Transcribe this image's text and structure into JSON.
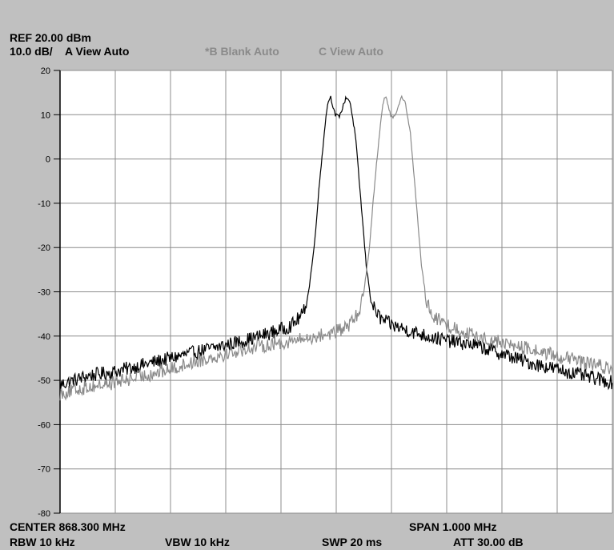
{
  "header": {
    "ref_level": "REF  20.00 dBm",
    "scale": "10.0 dB/",
    "trace_a": "A View Auto",
    "trace_b": "*B Blank Auto",
    "trace_c": "C View Auto"
  },
  "footer": {
    "center": "CENTER 868.300 MHz",
    "span": "SPAN 1.000 MHz",
    "rbw": "RBW  10 kHz",
    "vbw": "VBW  10 kHz",
    "swp": "SWP  20 ms",
    "att": "ATT  30.00 dB"
  },
  "colors": {
    "plot_background": "#ffffff",
    "grid": "#8c8c8c",
    "frame": "#c0c0c0",
    "trace_a": "#000000",
    "trace_c": "#8a8a8a"
  },
  "chart_data": {
    "type": "line",
    "title": "",
    "xlabel": "",
    "ylabel": "",
    "x_unit": "MHz",
    "y_unit": "dBm",
    "center_mhz": 868.3,
    "span_mhz": 1.0,
    "xlim": [
      867.8,
      868.8
    ],
    "ylim": [
      -80,
      20
    ],
    "ytick_labels": [
      "20",
      "10",
      "0",
      "-10",
      "-20",
      "-30",
      "-40",
      "-50",
      "-60",
      "-70",
      "-80"
    ],
    "grid": true,
    "x_divisions": 10,
    "y_divisions": 10,
    "series": [
      {
        "name": "A",
        "color": "#000000",
        "x": [
          867.8,
          867.85,
          867.9,
          867.95,
          868.0,
          868.05,
          868.1,
          868.15,
          868.2,
          868.22,
          868.24,
          868.25,
          868.26,
          868.27,
          868.28,
          868.285,
          868.29,
          868.298,
          868.305,
          868.31,
          868.318,
          868.325,
          868.335,
          868.345,
          868.355,
          868.365,
          868.38,
          868.4,
          868.45,
          868.5,
          868.55,
          868.6,
          868.65,
          868.7,
          868.75,
          868.8
        ],
        "y": [
          -51,
          -49,
          -48,
          -46.5,
          -45,
          -43.5,
          -42,
          -40.5,
          -38.5,
          -37.5,
          -35,
          -30,
          -20,
          -5,
          8,
          13,
          14,
          10,
          9.5,
          11,
          14,
          13,
          5,
          -10,
          -25,
          -33,
          -36,
          -37.5,
          -39.5,
          -41,
          -42,
          -44,
          -46,
          -47.5,
          -49,
          -50.5
        ]
      },
      {
        "name": "C",
        "color": "#8a8a8a",
        "x": [
          867.8,
          867.85,
          867.9,
          867.95,
          868.0,
          868.05,
          868.1,
          868.15,
          868.2,
          868.25,
          868.3,
          868.32,
          868.34,
          868.35,
          868.36,
          868.37,
          868.38,
          868.385,
          868.39,
          868.398,
          868.405,
          868.41,
          868.418,
          868.425,
          868.435,
          868.445,
          868.455,
          868.465,
          868.48,
          868.5,
          868.55,
          868.6,
          868.65,
          868.7,
          868.75,
          868.8
        ],
        "y": [
          -53,
          -51.5,
          -50.5,
          -49,
          -47.5,
          -45.5,
          -44,
          -42.5,
          -41.5,
          -40.5,
          -39,
          -38,
          -35,
          -30,
          -20,
          -5,
          8,
          13,
          14,
          10,
          9.5,
          11,
          14,
          13,
          5,
          -10,
          -25,
          -33,
          -36,
          -37.5,
          -40,
          -41.5,
          -43,
          -44.5,
          -46,
          -47.5
        ]
      }
    ]
  }
}
